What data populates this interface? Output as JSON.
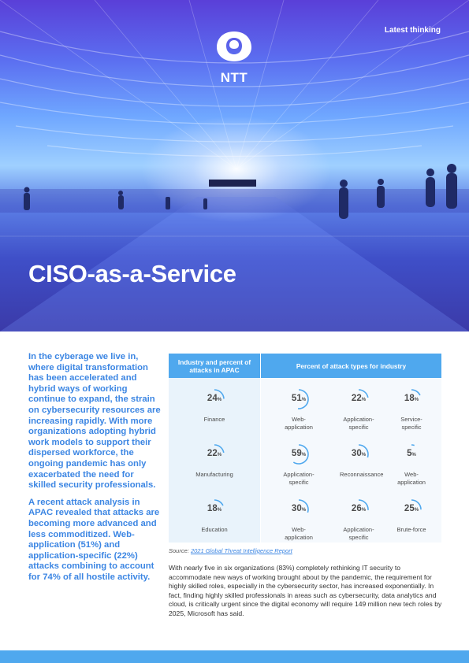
{
  "header": {
    "tag": "Latest thinking",
    "logo_text": "NTT",
    "title": "CISO-as-a-Service"
  },
  "intro": {
    "paragraph1": "In the cyberage we live in, where digital transformation has been accelerated and hybrid ways of working continue to expand, the strain on cybersecurity resources are increasing rapidly. With more organizations adopting hybrid work models to support their dispersed workforce, the ongoing pandemic has only exacerbated the need for skilled security professionals.",
    "paragraph2": "A recent attack analysis in APAC revealed that attacks are becoming more advanced and less commoditized. Web-application (51%) and application-specific (22%) attacks combining to account for 74% of all hostile activity."
  },
  "table": {
    "col1_header": "Industry and percent of attacks in APAC",
    "col2_header": "Percent of attack types for industry",
    "accent_color": "#4fa8ee",
    "rows": [
      {
        "industry": {
          "label": "Finance",
          "value": 24
        },
        "attacks": [
          {
            "label": "Web-application",
            "value": 51
          },
          {
            "label": "Application-specific",
            "value": 22
          },
          {
            "label": "Service-specific",
            "value": 18
          }
        ]
      },
      {
        "industry": {
          "label": "Manufacturing",
          "value": 22
        },
        "attacks": [
          {
            "label": "Application-specific",
            "value": 59
          },
          {
            "label": "Reconnaissance",
            "value": 30
          },
          {
            "label": "Web-application",
            "value": 5
          }
        ]
      },
      {
        "industry": {
          "label": "Education",
          "value": 18
        },
        "attacks": [
          {
            "label": "Web-application",
            "value": 30
          },
          {
            "label": "Application-specific",
            "value": 26
          },
          {
            "label": "Brute-force",
            "value": 25
          }
        ]
      }
    ],
    "percent_sign": "%"
  },
  "source": {
    "prefix": "Source:",
    "link_text": "2021 Global Threat Intelligence Report"
  },
  "body": {
    "paragraph": "With nearly five in six organizations (83%) completely rethinking IT security to accommodate new ways of working brought about by the pandemic, the requirement for highly skilled roles, especially in the cybersecurity sector, has increased exponentially. In fact, finding highly skilled professionals in areas such as cybersecurity, data analytics and cloud, is critically urgent since the digital economy will require 149 million new tech roles by 2025, Microsoft has said."
  }
}
